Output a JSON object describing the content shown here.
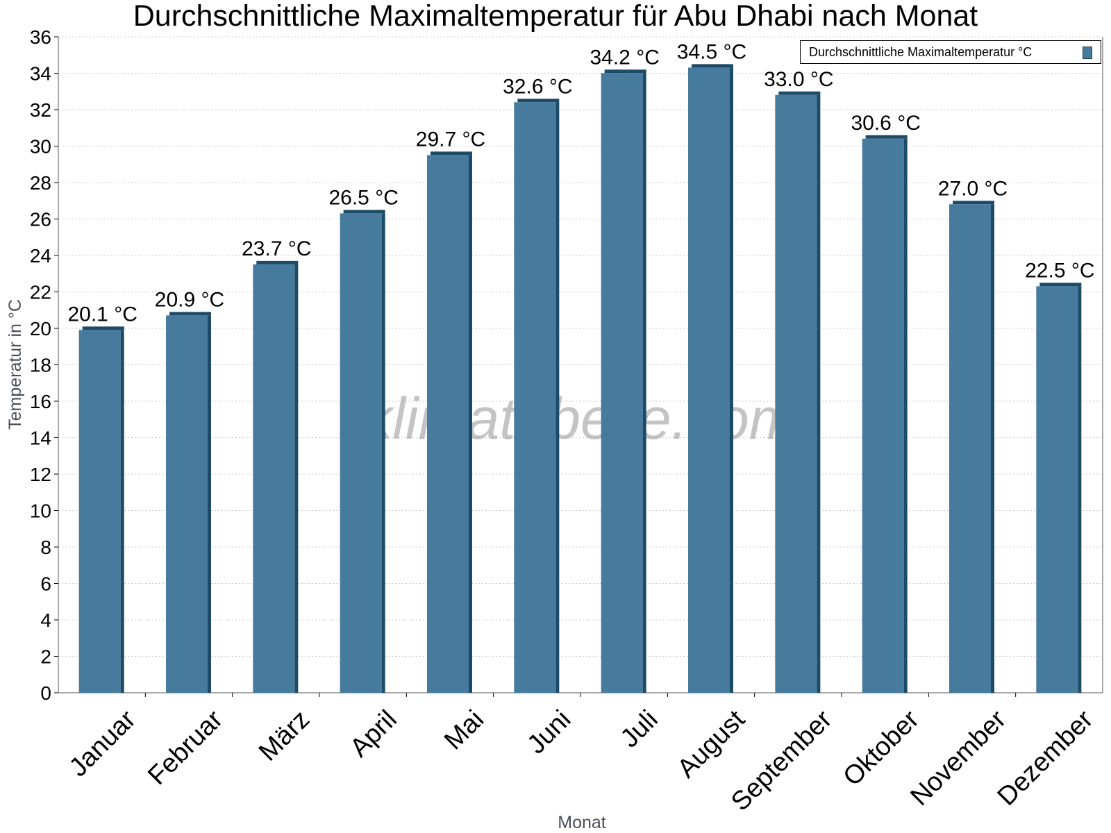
{
  "chart_data": {
    "type": "bar",
    "title": "Durchschnittliche Maximaltemperatur für Abu Dhabi nach Monat",
    "xlabel": "Monat",
    "ylabel": "Temperatur in °C",
    "categories": [
      "Januar",
      "Februar",
      "März",
      "April",
      "Mai",
      "Juni",
      "Juli",
      "August",
      "September",
      "Oktober",
      "November",
      "Dezember"
    ],
    "series": [
      {
        "name": "Durchschnittliche Maximaltemperatur °C",
        "values": [
          20.1,
          20.9,
          23.7,
          26.5,
          29.7,
          32.6,
          34.2,
          34.5,
          33.0,
          30.6,
          27.0,
          22.5
        ],
        "labels": [
          "20.1 °C",
          "20.9 °C",
          "23.7 °C",
          "26.5 °C",
          "29.7 °C",
          "32.6 °C",
          "34.2 °C",
          "34.5 °C",
          "33.0 °C",
          "30.6 °C",
          "27.0 °C",
          "22.5 °C"
        ]
      }
    ],
    "ylim": [
      0,
      36
    ],
    "yticks": [
      "0",
      "2",
      "4",
      "6",
      "8",
      "10",
      "12",
      "14",
      "16",
      "18",
      "20",
      "22",
      "24",
      "26",
      "28",
      "30",
      "32",
      "34",
      "36"
    ],
    "grid": true,
    "legend_position": "top-right",
    "colors": {
      "bar": "#467b9d",
      "bar_edge": "#1d4a66",
      "grid": "#c8c8c8"
    },
    "watermark": "klimatabelle.com"
  }
}
